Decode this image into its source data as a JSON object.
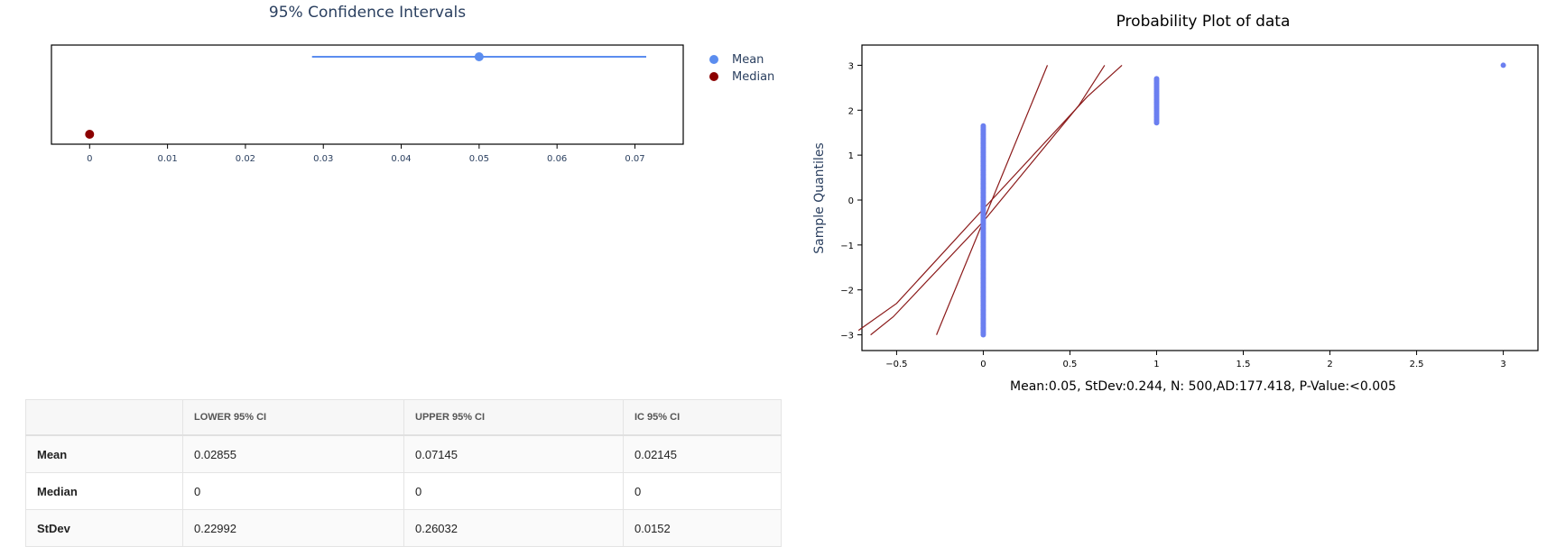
{
  "chart_data": [
    {
      "type": "scatter",
      "title": "95% Confidence Intervals",
      "x_ticks": [
        0,
        0.01,
        0.02,
        0.03,
        0.04,
        0.05,
        0.06,
        0.07
      ],
      "xlim": [
        -0.0049,
        0.0762
      ],
      "grid": false,
      "legend_position": "right",
      "series": [
        {
          "name": "Mean",
          "color": "#5b8def",
          "x": 0.05,
          "interval": [
            0.02855,
            0.07145
          ]
        },
        {
          "name": "Median",
          "color": "#8b0000",
          "x": 0
        }
      ]
    },
    {
      "type": "scatter",
      "title": "Probability Plot of data",
      "ylabel": "Sample Quantiles",
      "xlabel": "Mean:0.05, StDev:0.244, N: 500,AD:177.418, P-Value:<0.005",
      "x_ticks": [
        -0.5,
        0,
        0.5,
        1,
        1.5,
        2,
        2.5,
        3
      ],
      "x_tick_labels": [
        "−0.5",
        "0",
        "0.5",
        "1",
        "1.5",
        "2",
        "2.5",
        "3"
      ],
      "y_ticks": [
        -3,
        -2,
        -1,
        0,
        1,
        2,
        3
      ],
      "y_tick_labels": [
        "−3",
        "−2",
        "−1",
        "0",
        "1",
        "2",
        "3"
      ],
      "xlim": [
        -0.7,
        3.2
      ],
      "ylim": [
        -3.35,
        3.45
      ],
      "grid": false,
      "points_color": "#6b7ff0",
      "line_color": "#8b1a1a",
      "groups": [
        {
          "x": 0,
          "y_min": -3.0,
          "y_max": 1.65
        },
        {
          "x": 1,
          "y_min": 1.72,
          "y_max": 2.7
        },
        {
          "x": 3,
          "y_min": 3.0,
          "y_max": 3.0
        }
      ],
      "fit_lines": [
        [
          [
            -0.27,
            -3.0
          ],
          [
            0.37,
            3.0
          ]
        ],
        [
          [
            -0.65,
            -3.0
          ],
          [
            -0.52,
            -2.6
          ],
          [
            0.0,
            -0.48
          ],
          [
            0.55,
            2.1
          ],
          [
            0.7,
            3.0
          ]
        ],
        [
          [
            -0.72,
            -2.9
          ],
          [
            -0.5,
            -2.3
          ],
          [
            0.0,
            -0.2
          ],
          [
            0.6,
            2.3
          ],
          [
            0.8,
            3.0
          ]
        ]
      ]
    }
  ],
  "table": {
    "headers": [
      "",
      "LOWER 95% CI",
      "UPPER 95% CI",
      "IC 95% CI"
    ],
    "rows": [
      [
        "Mean",
        "0.02855",
        "0.07145",
        "0.02145"
      ],
      [
        "Median",
        "0",
        "0",
        "0"
      ],
      [
        "StDev",
        "0.22992",
        "0.26032",
        "0.0152"
      ]
    ]
  }
}
